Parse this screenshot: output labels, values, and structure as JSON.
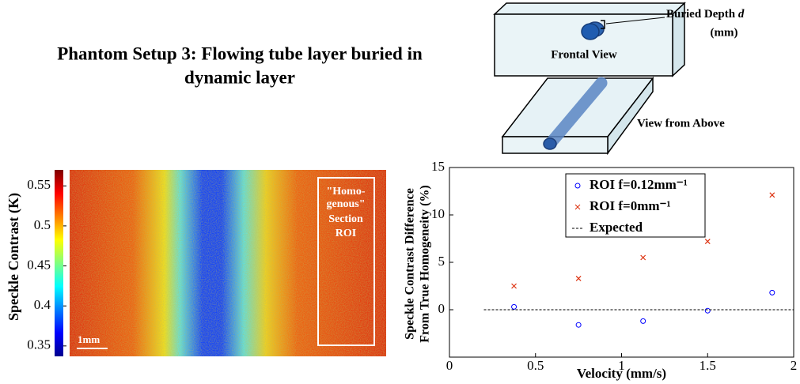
{
  "header": {
    "title_lines": [
      "Phantom Setup 3:  Flowing tube layer buried in",
      "dynamic layer"
    ]
  },
  "diagram": {
    "depth_label": "Buried Depth",
    "depth_symbol": "d",
    "depth_unit": "(mm)",
    "frontal_label": "Frontal View",
    "above_label": "View from Above"
  },
  "image": {
    "roi_label_lines": [
      "\"Homo-",
      "genous\"",
      "Section",
      "ROI"
    ],
    "scale_label": "1mm"
  },
  "chart_data": [
    {
      "type": "colorbar",
      "label": "Speckle Contrast  (K)",
      "ylim": [
        0.337,
        0.57
      ],
      "yticks": [
        0.35,
        0.4,
        0.45,
        0.5,
        0.55
      ]
    },
    {
      "type": "scatter",
      "xlabel": "Velocity (mm/s)",
      "ylabel_lines": [
        "Speckle Contrast Difference",
        "From True Homogeneity (%)"
      ],
      "xlim": [
        0,
        2
      ],
      "ylim": [
        -5,
        15
      ],
      "xticks": [
        0,
        0.5,
        1,
        1.5,
        2
      ],
      "yticks": [
        0,
        5,
        10,
        15
      ],
      "series": [
        {
          "name": "ROI f=0.12mm⁻¹",
          "color": "#0000ff",
          "marker": "circle",
          "x": [
            0.375,
            0.75,
            1.125,
            1.5,
            1.875
          ],
          "values": [
            0.3,
            -1.6,
            -1.2,
            -0.1,
            1.8
          ]
        },
        {
          "name": "ROI f=0mm⁻¹",
          "color": "#dd3311",
          "marker": "cross",
          "x": [
            0.375,
            0.75,
            1.125,
            1.5,
            1.875
          ],
          "values": [
            2.5,
            3.3,
            5.5,
            7.2,
            12.1
          ]
        },
        {
          "name": "Expected",
          "color": "#000000",
          "marker": "dashed-line",
          "x": [
            0.2,
            2
          ],
          "values": [
            0,
            0
          ]
        }
      ]
    }
  ]
}
